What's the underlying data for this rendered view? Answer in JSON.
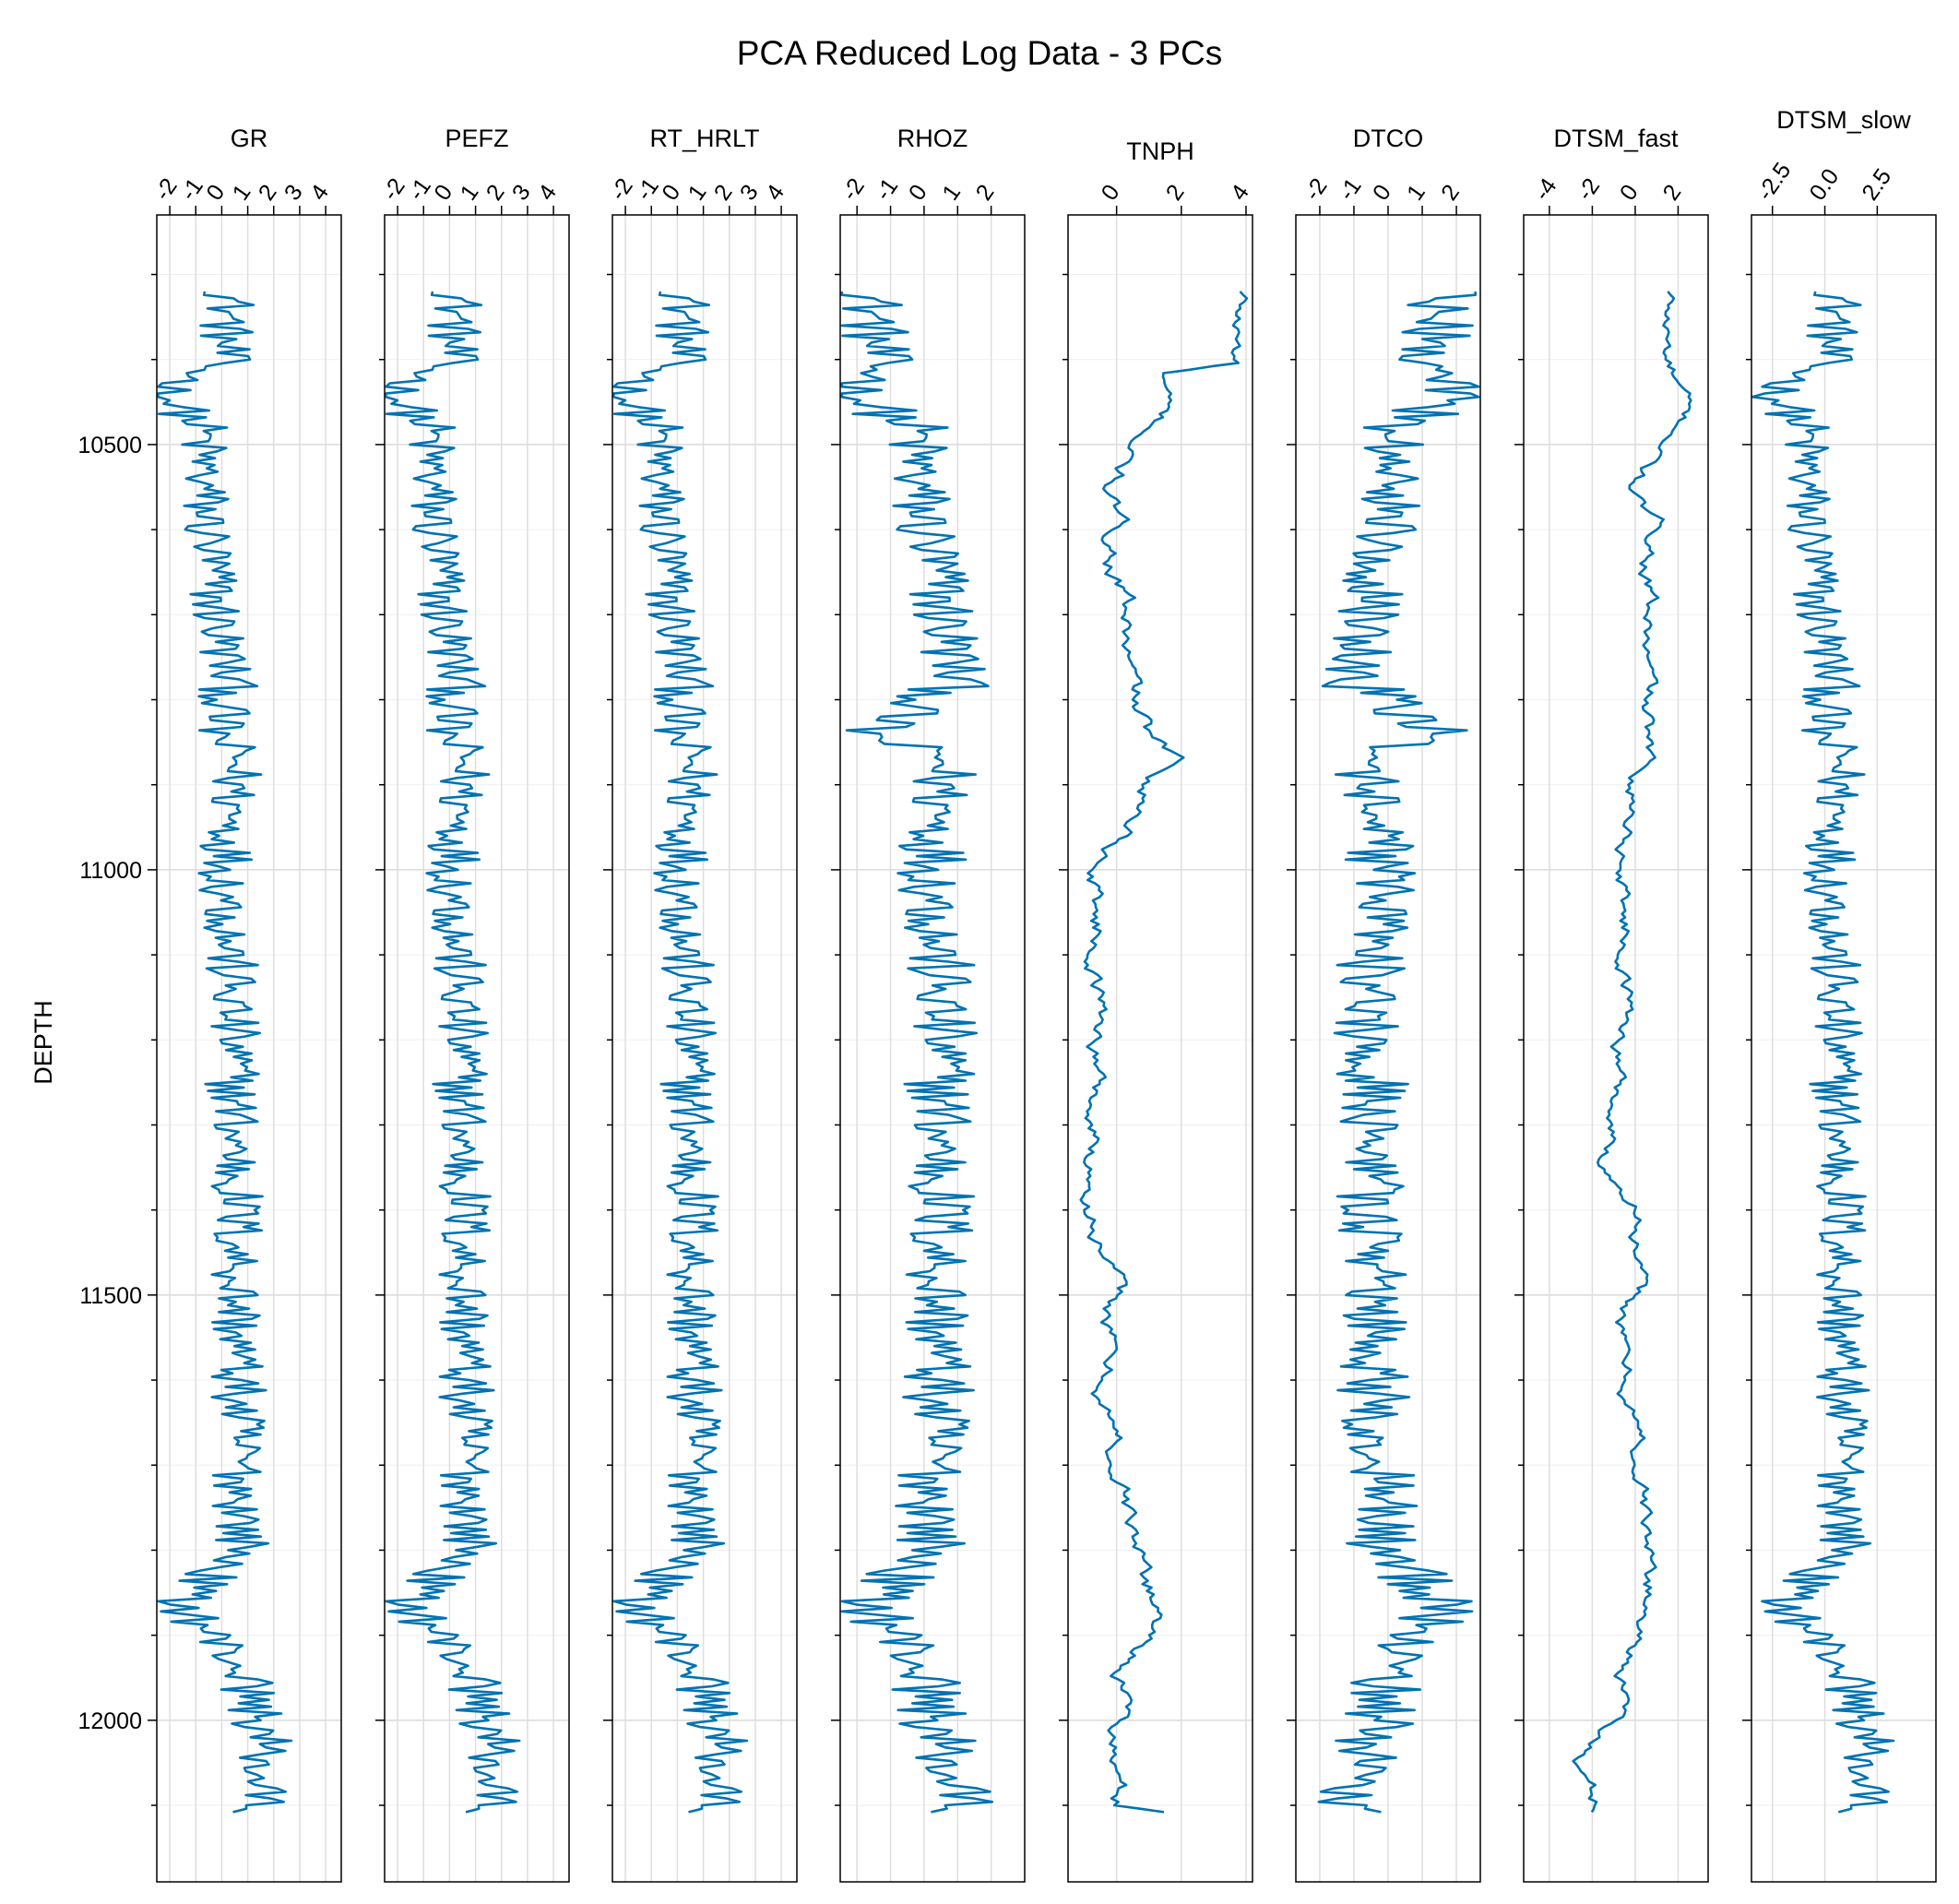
{
  "chart_data": {
    "type": "line",
    "title": "PCA Reduced Log Data - 3 PCs",
    "ylabel": "DEPTH",
    "ylim": [
      10230,
      12190
    ],
    "y_reversed": true,
    "y_ticks": [
      10500,
      11000,
      11500,
      12000
    ],
    "y_tick_labels": [
      "10500",
      "11000",
      "11500",
      "12000"
    ],
    "y_minor_step": 100,
    "grid": true,
    "line_color": "#0072b2",
    "tracks": [
      {
        "name": "GR",
        "xlim": [
          -2.5,
          4.6
        ],
        "ticks": [
          -2,
          -1,
          0,
          1,
          2,
          3,
          4
        ],
        "tick_labels": [
          "-2",
          "-1",
          "0",
          "1",
          "2",
          "3",
          "4"
        ],
        "profile": [
          [
            10320,
            0.4
          ],
          [
            10400,
            0.0
          ],
          [
            10440,
            -2.2
          ],
          [
            10480,
            -0.8
          ],
          [
            10560,
            -0.7
          ],
          [
            10680,
            -0.3
          ],
          [
            10780,
            0.3
          ],
          [
            10840,
            -0.2
          ],
          [
            10870,
            0.6
          ],
          [
            11000,
            0.2
          ],
          [
            11200,
            0.4
          ],
          [
            11400,
            0.6
          ],
          [
            11600,
            0.6
          ],
          [
            11800,
            0.8
          ],
          [
            11860,
            -1.6
          ],
          [
            11940,
            0.8
          ],
          [
            12020,
            1.6
          ],
          [
            12110,
            1.4
          ]
        ]
      },
      {
        "name": "PEFZ",
        "xlim": [
          -2.5,
          4.6
        ],
        "ticks": [
          -2,
          -1,
          0,
          1,
          2,
          3,
          4
        ],
        "tick_labels": [
          "-2",
          "-1",
          "0",
          "1",
          "2",
          "3",
          "4"
        ],
        "profile": [
          [
            10320,
            0.4
          ],
          [
            10400,
            0.0
          ],
          [
            10440,
            -2.2
          ],
          [
            10480,
            -0.8
          ],
          [
            10560,
            -0.7
          ],
          [
            10680,
            -0.3
          ],
          [
            10780,
            0.3
          ],
          [
            10840,
            -0.2
          ],
          [
            10870,
            0.6
          ],
          [
            11000,
            0.2
          ],
          [
            11200,
            0.4
          ],
          [
            11400,
            0.6
          ],
          [
            11600,
            0.6
          ],
          [
            11800,
            0.8
          ],
          [
            11860,
            -1.6
          ],
          [
            11940,
            0.8
          ],
          [
            12020,
            1.6
          ],
          [
            12110,
            1.6
          ]
        ]
      },
      {
        "name": "RT_HRLT",
        "xlim": [
          -2.5,
          4.6
        ],
        "ticks": [
          -2,
          -1,
          0,
          1,
          2,
          3,
          4
        ],
        "tick_labels": [
          "-2",
          "-1",
          "0",
          "1",
          "2",
          "3",
          "4"
        ],
        "profile": [
          [
            10320,
            0.4
          ],
          [
            10400,
            0.0
          ],
          [
            10440,
            -2.2
          ],
          [
            10480,
            -0.8
          ],
          [
            10560,
            -0.7
          ],
          [
            10680,
            -0.3
          ],
          [
            10780,
            0.3
          ],
          [
            10840,
            -0.2
          ],
          [
            10870,
            0.6
          ],
          [
            11000,
            0.2
          ],
          [
            11200,
            0.4
          ],
          [
            11400,
            0.6
          ],
          [
            11600,
            0.6
          ],
          [
            11800,
            0.8
          ],
          [
            11860,
            -1.6
          ],
          [
            11940,
            0.8
          ],
          [
            12020,
            1.6
          ],
          [
            12110,
            1.4
          ]
        ]
      },
      {
        "name": "RHOZ",
        "xlim": [
          -2.5,
          3.0
        ],
        "ticks": [
          -2,
          -1,
          0,
          1,
          2
        ],
        "tick_labels": [
          "-2",
          "-1",
          "0",
          "1",
          "2"
        ],
        "profile": [
          [
            10320,
            -1.6
          ],
          [
            10420,
            -1.4
          ],
          [
            10440,
            -2.2
          ],
          [
            10480,
            -0.3
          ],
          [
            10560,
            -0.2
          ],
          [
            10680,
            0.5
          ],
          [
            10780,
            1.0
          ],
          [
            10840,
            -1.8
          ],
          [
            10870,
            0.6
          ],
          [
            11000,
            0.3
          ],
          [
            11200,
            0.5
          ],
          [
            11400,
            0.5
          ],
          [
            11600,
            0.4
          ],
          [
            11800,
            0.2
          ],
          [
            11860,
            -1.6
          ],
          [
            11940,
            0.0
          ],
          [
            12020,
            0.4
          ],
          [
            12110,
            1.2
          ]
        ]
      },
      {
        "name": "TNPH",
        "xlim": [
          -1.5,
          4.2
        ],
        "ticks": [
          0,
          2,
          4
        ],
        "tick_labels": [
          "0",
          "2",
          "4"
        ],
        "profile": [
          [
            10320,
            3.8
          ],
          [
            10405,
            3.6
          ],
          [
            10415,
            1.4
          ],
          [
            10480,
            1.0
          ],
          [
            10520,
            0.2
          ],
          [
            10560,
            -0.3
          ],
          [
            10680,
            0.2
          ],
          [
            10780,
            0.3
          ],
          [
            10840,
            0.8
          ],
          [
            10870,
            1.6
          ],
          [
            10960,
            0.4
          ],
          [
            11000,
            -0.6
          ],
          [
            11200,
            -0.5
          ],
          [
            11300,
            -0.8
          ],
          [
            11400,
            -0.6
          ],
          [
            11500,
            -0.2
          ],
          [
            11600,
            -0.4
          ],
          [
            11700,
            0.0
          ],
          [
            11800,
            0.6
          ],
          [
            11880,
            1.4
          ],
          [
            11940,
            0.4
          ],
          [
            12020,
            -0.1
          ],
          [
            12100,
            0.0
          ],
          [
            12110,
            2.2
          ]
        ]
      },
      {
        "name": "DTCO",
        "xlim": [
          -2.7,
          2.7
        ],
        "ticks": [
          -2,
          -1,
          0,
          1,
          2
        ],
        "tick_labels": [
          "-2",
          "-1",
          "0",
          "1",
          "2"
        ],
        "profile": [
          [
            10320,
            1.5
          ],
          [
            10420,
            1.4
          ],
          [
            10440,
            2.0
          ],
          [
            10480,
            0.3
          ],
          [
            10560,
            0.2
          ],
          [
            10680,
            -0.5
          ],
          [
            10780,
            -1.0
          ],
          [
            10840,
            1.8
          ],
          [
            10870,
            -0.6
          ],
          [
            11000,
            -0.3
          ],
          [
            11200,
            -0.5
          ],
          [
            11400,
            -0.5
          ],
          [
            11600,
            -0.4
          ],
          [
            11800,
            -0.2
          ],
          [
            11860,
            1.6
          ],
          [
            11940,
            0.0
          ],
          [
            12020,
            -0.4
          ],
          [
            12110,
            -1.2
          ]
        ]
      },
      {
        "name": "DTSM_fast",
        "xlim": [
          -5.2,
          3.4
        ],
        "ticks": [
          -4,
          -2,
          0,
          2
        ],
        "tick_labels": [
          "-4",
          "-2",
          "0",
          "2"
        ],
        "profile": [
          [
            10320,
            1.5
          ],
          [
            10400,
            1.4
          ],
          [
            10440,
            2.0
          ],
          [
            10490,
            1.8
          ],
          [
            10540,
            0.0
          ],
          [
            10570,
            0.0
          ],
          [
            10600,
            1.0
          ],
          [
            10700,
            0.5
          ],
          [
            10800,
            0.4
          ],
          [
            10900,
            0.2
          ],
          [
            11000,
            -0.5
          ],
          [
            11150,
            -0.3
          ],
          [
            11350,
            -1.4
          ],
          [
            11400,
            0.5
          ],
          [
            11500,
            -0.3
          ],
          [
            11550,
            -0.8
          ],
          [
            11650,
            0.0
          ],
          [
            11750,
            0.4
          ],
          [
            11850,
            0.7
          ],
          [
            11950,
            -0.3
          ],
          [
            12000,
            -1.0
          ],
          [
            12050,
            -2.8
          ],
          [
            12110,
            -1.6
          ]
        ]
      },
      {
        "name": "DTSM_slow",
        "xlim": [
          -3.5,
          5.3
        ],
        "ticks": [
          -2.5,
          0,
          2.5
        ],
        "tick_labels": [
          "-2.5",
          "0.0",
          "2.5"
        ],
        "profile": [
          [
            10320,
            0.8
          ],
          [
            10400,
            0.0
          ],
          [
            10440,
            -2.4
          ],
          [
            10480,
            -1.0
          ],
          [
            10560,
            -0.9
          ],
          [
            10680,
            -0.4
          ],
          [
            10780,
            0.4
          ],
          [
            10840,
            -0.3
          ],
          [
            10870,
            0.8
          ],
          [
            11000,
            0.3
          ],
          [
            11200,
            0.5
          ],
          [
            11400,
            0.8
          ],
          [
            11600,
            0.8
          ],
          [
            11800,
            1.0
          ],
          [
            11860,
            -2.0
          ],
          [
            11940,
            1.0
          ],
          [
            12020,
            2.0
          ],
          [
            12110,
            1.8
          ]
        ]
      }
    ],
    "series_depth_range": [
      10320,
      12110
    ],
    "series_step": 4,
    "series_amplitude": [
      1.1,
      1.1,
      1.1,
      1.1,
      0.35,
      1.1,
      0.45,
      1.3
    ]
  }
}
